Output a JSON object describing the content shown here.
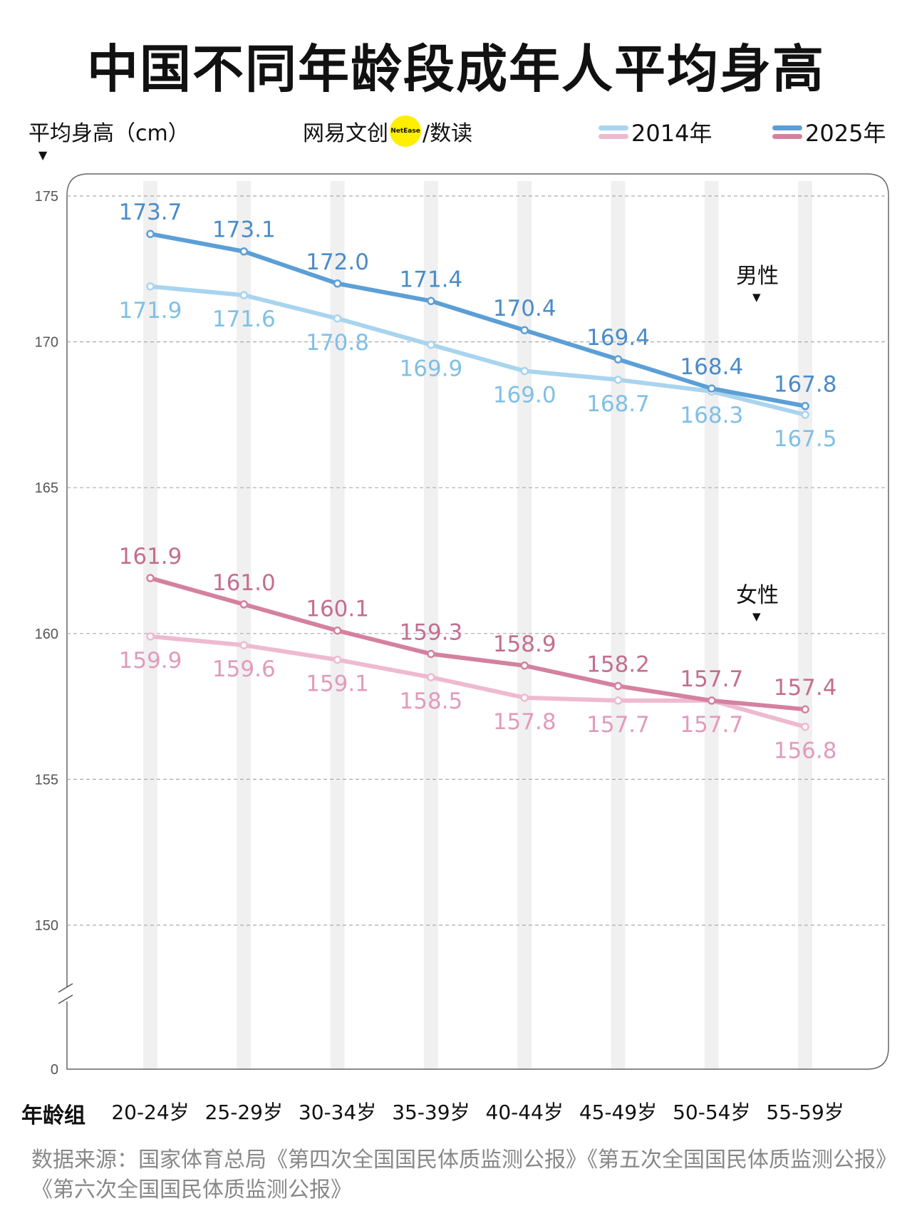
{
  "title": "中国不同年龄段成年人平均身高",
  "y_axis_label": "平均身高（cm）",
  "brand": {
    "left": "网易文创",
    "badge": "NetEase",
    "right": "/数读"
  },
  "x_axis_name": "年龄组",
  "source": "数据来源：国家体育总局《第四次全国国民体质监测公报》《第五次全国国民体质监测公报》《第六次全国国民体质监测公报》",
  "annotations": {
    "male": "男性",
    "female": "女性"
  },
  "chart_data": {
    "type": "line",
    "title": "中国不同年龄段成年人平均身高",
    "ylabel": "平均身高（cm）",
    "xlabel": "年龄组",
    "categories": [
      "20-24岁",
      "25-29岁",
      "30-34岁",
      "35-39岁",
      "40-44岁",
      "45-49岁",
      "50-54岁",
      "55-59岁"
    ],
    "yticks": [
      175,
      170,
      165,
      160,
      155,
      150,
      0
    ],
    "ylim": [
      148,
      175
    ],
    "axis_break": true,
    "grid": "horizontal dashed",
    "legend": [
      {
        "name": "2014年",
        "colors": [
          "#a9d4ee",
          "#eebad0"
        ]
      },
      {
        "name": "2025年",
        "colors": [
          "#5c9fd6",
          "#d4819f"
        ]
      }
    ],
    "legend_placement": "top-right",
    "series": [
      {
        "name": "2014年",
        "group": "男性",
        "color": "#a9d4ee",
        "label_color": "#7fc0e6",
        "values": [
          171.9,
          171.6,
          170.8,
          169.9,
          169.0,
          168.7,
          168.3,
          167.5
        ]
      },
      {
        "name": "2025年",
        "group": "男性",
        "color": "#5c9fd6",
        "label_color": "#4a8cc8",
        "values": [
          173.7,
          173.1,
          172.0,
          171.4,
          170.4,
          169.4,
          168.4,
          167.8
        ]
      },
      {
        "name": "2014年",
        "group": "女性",
        "color": "#eebad0",
        "label_color": "#e29bbb",
        "values": [
          159.9,
          159.6,
          159.1,
          158.5,
          157.8,
          157.7,
          157.7,
          156.8
        ]
      },
      {
        "name": "2025年",
        "group": "女性",
        "color": "#d4819f",
        "label_color": "#c46e8f",
        "values": [
          161.9,
          161.0,
          160.1,
          159.3,
          158.9,
          158.2,
          157.7,
          157.4
        ]
      }
    ]
  }
}
